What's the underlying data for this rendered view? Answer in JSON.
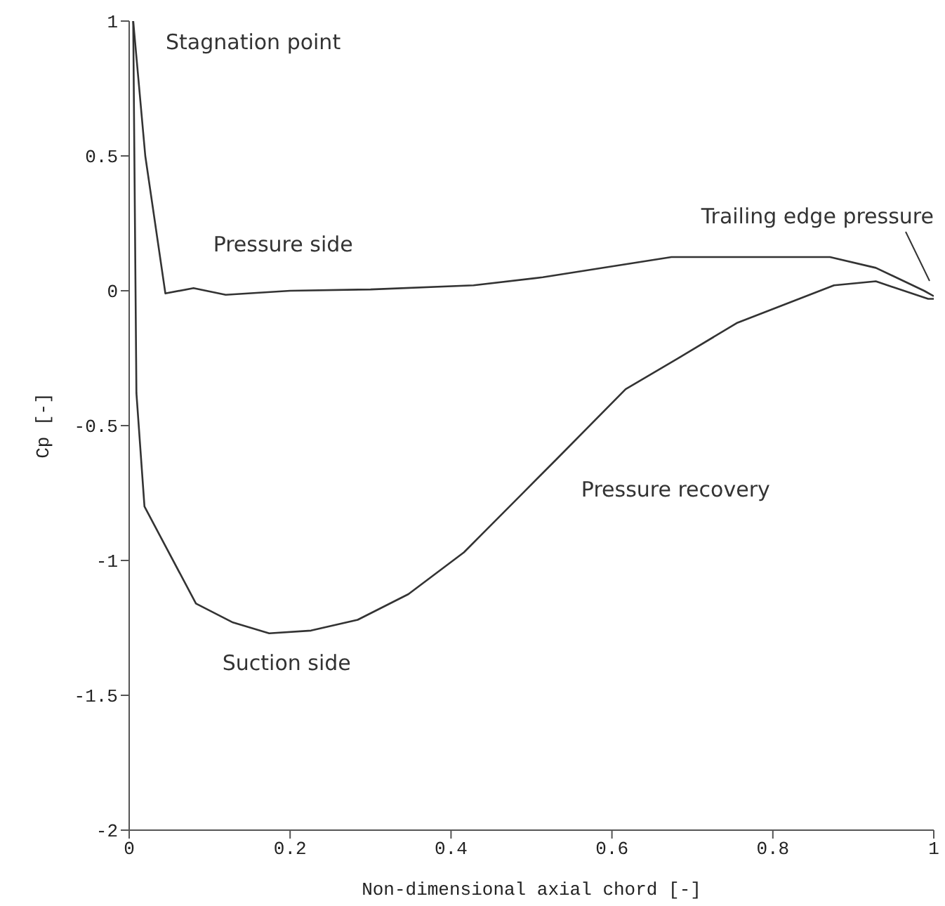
{
  "chart_data": {
    "type": "line",
    "xlabel": "Non-dimensional axial chord [-]",
    "ylabel": "Cp [-]",
    "xlim": [
      0,
      1
    ],
    "ylim": [
      -2,
      1
    ],
    "xticks": [
      0,
      0.2,
      0.4,
      0.6,
      0.8,
      1
    ],
    "yticks": [
      -2,
      -1.5,
      -1,
      -0.5,
      0,
      0.5,
      1
    ],
    "grid": false,
    "legend": false,
    "marker": "none",
    "line_style": "solid",
    "series": [
      {
        "color": "#333333",
        "x": [
          0.005,
          0.02,
          0.045,
          0.08,
          0.12,
          0.2,
          0.3,
          0.428,
          0.514,
          0.674,
          0.772,
          0.871,
          0.928,
          0.988,
          1
        ],
        "values": [
          1,
          0.5,
          -0.01,
          0.01,
          -0.015,
          0,
          0.005,
          0.02,
          0.05,
          0.125,
          0.125,
          0.125,
          0.085,
          0.0,
          -0.02
        ]
      },
      {
        "color": "#333333",
        "x": [
          0.005,
          0.009,
          0.019,
          0.083,
          0.129,
          0.174,
          0.226,
          0.284,
          0.347,
          0.416,
          0.491,
          0.531,
          0.617,
          0.691,
          0.755,
          0.876,
          0.928,
          0.993,
          1
        ],
        "values": [
          1,
          -0.38,
          -0.8,
          -1.16,
          -1.23,
          -1.27,
          -1.26,
          -1.22,
          -1.125,
          -0.97,
          -0.745,
          -0.625,
          -0.365,
          -0.235,
          -0.12,
          0.02,
          0.035,
          -0.03,
          -0.03
        ]
      }
    ],
    "annotations": [
      {
        "text": "Stagnation point",
        "x": 0,
        "y": 1
      },
      {
        "text": "Pressure side",
        "x": 0.2,
        "y": 0
      },
      {
        "text": "Suction side",
        "x": 0.18,
        "y": -1.27
      },
      {
        "text": "Pressure recovery",
        "x": 0.55,
        "y": -0.55
      },
      {
        "text": "Trailing edge pressure",
        "x": 1,
        "y": 0
      }
    ]
  }
}
